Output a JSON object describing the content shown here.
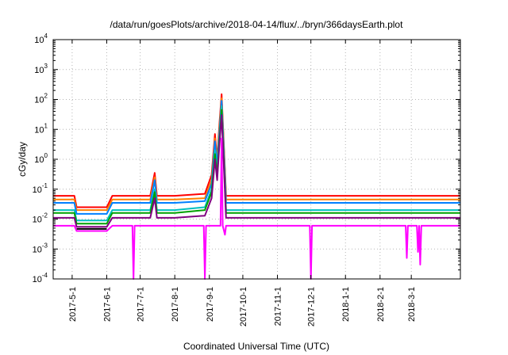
{
  "chart_data": {
    "type": "line",
    "title": "/data/run/goesPlots/archive/2018-04-14/flux/../bryn/366daysEarth.plot",
    "xlabel": "Coordinated Universal Time (UTC)",
    "ylabel": "cGy/day",
    "yscale": "log",
    "ylim": [
      0.0001,
      10000
    ],
    "xlim": [
      "2017-04-14",
      "2018-04-14"
    ],
    "grid": true,
    "x_ticks": [
      "2017-5-1",
      "2017-6-1",
      "2017-7-1",
      "2017-8-1",
      "2017-9-1",
      "2017-10-1",
      "2017-11-1",
      "2017-12-1",
      "2018-1-1",
      "2018-2-1",
      "2018-3-1"
    ],
    "y_ticks": [
      {
        "value": 0.0001,
        "label": "10",
        "exp": "-4"
      },
      {
        "value": 0.001,
        "label": "10",
        "exp": "-3"
      },
      {
        "value": 0.01,
        "label": "10",
        "exp": "-2"
      },
      {
        "value": 0.1,
        "label": "10",
        "exp": "-1"
      },
      {
        "value": 1,
        "label": "10",
        "exp": "0"
      },
      {
        "value": 10,
        "label": "10",
        "exp": "1"
      },
      {
        "value": 100,
        "label": "10",
        "exp": "2"
      },
      {
        "value": 1000,
        "label": "10",
        "exp": "3"
      },
      {
        "value": 10000,
        "label": "10",
        "exp": "4"
      }
    ],
    "series": [
      {
        "color": "#ff0000",
        "x": [
          "2017-04-14",
          "2017-05-03",
          "2017-05-05",
          "2017-06-01",
          "2017-06-06",
          "2017-07-10",
          "2017-07-14",
          "2017-07-16",
          "2017-08-01",
          "2017-08-28",
          "2017-09-03",
          "2017-09-06",
          "2017-09-08",
          "2017-09-10",
          "2017-09-12",
          "2017-09-16",
          "2017-10-01",
          "2017-11-01",
          "2017-12-01",
          "2018-01-01",
          "2018-02-01",
          "2018-03-01",
          "2018-04-14"
        ],
        "y": [
          0.06,
          0.06,
          0.025,
          0.025,
          0.06,
          0.06,
          0.35,
          0.06,
          0.06,
          0.07,
          0.3,
          7,
          1,
          15,
          150,
          0.06,
          0.06,
          0.06,
          0.06,
          0.06,
          0.06,
          0.06,
          0.06
        ]
      },
      {
        "color": "#ff8000",
        "x": [
          "2017-04-14",
          "2017-05-03",
          "2017-05-05",
          "2017-06-01",
          "2017-06-06",
          "2017-07-10",
          "2017-07-14",
          "2017-07-16",
          "2017-08-01",
          "2017-08-28",
          "2017-09-03",
          "2017-09-06",
          "2017-09-08",
          "2017-09-10",
          "2017-09-12",
          "2017-09-16",
          "2017-10-01",
          "2017-11-01",
          "2017-12-01",
          "2018-01-01",
          "2018-02-01",
          "2018-03-01",
          "2018-04-14"
        ],
        "y": [
          0.045,
          0.045,
          0.02,
          0.02,
          0.045,
          0.045,
          0.25,
          0.045,
          0.045,
          0.05,
          0.2,
          5,
          0.8,
          11,
          110,
          0.045,
          0.045,
          0.045,
          0.045,
          0.045,
          0.045,
          0.045,
          0.045
        ]
      },
      {
        "color": "#0080ff",
        "x": [
          "2017-04-14",
          "2017-05-03",
          "2017-05-05",
          "2017-06-01",
          "2017-06-06",
          "2017-07-10",
          "2017-07-14",
          "2017-07-16",
          "2017-08-01",
          "2017-08-28",
          "2017-09-03",
          "2017-09-06",
          "2017-09-08",
          "2017-09-10",
          "2017-09-12",
          "2017-09-16",
          "2017-10-01",
          "2017-11-01",
          "2017-12-01",
          "2018-01-01",
          "2018-02-01",
          "2018-03-01",
          "2018-04-14"
        ],
        "y": [
          0.035,
          0.035,
          0.015,
          0.015,
          0.035,
          0.035,
          0.2,
          0.035,
          0.035,
          0.04,
          0.15,
          4,
          0.6,
          8,
          90,
          0.035,
          0.035,
          0.035,
          0.035,
          0.035,
          0.035,
          0.035,
          0.035
        ]
      },
      {
        "color": "#00c0c0",
        "x": [
          "2017-04-14",
          "2017-05-03",
          "2017-05-05",
          "2017-06-01",
          "2017-06-06",
          "2017-07-10",
          "2017-07-14",
          "2017-07-16",
          "2017-08-01",
          "2017-08-28",
          "2017-09-03",
          "2017-09-06",
          "2017-09-08",
          "2017-09-10",
          "2017-09-12",
          "2017-09-16",
          "2017-10-01",
          "2017-11-01",
          "2017-12-01",
          "2018-01-01",
          "2018-02-01",
          "2018-03-01",
          "2018-04-14"
        ],
        "y": [
          0.02,
          0.02,
          0.009,
          0.009,
          0.02,
          0.02,
          0.1,
          0.02,
          0.02,
          0.025,
          0.1,
          2,
          0.4,
          5,
          60,
          0.02,
          0.02,
          0.02,
          0.02,
          0.02,
          0.02,
          0.02,
          0.02
        ]
      },
      {
        "color": "#00a000",
        "x": [
          "2017-04-14",
          "2017-05-03",
          "2017-05-05",
          "2017-06-01",
          "2017-06-06",
          "2017-07-10",
          "2017-07-14",
          "2017-07-16",
          "2017-08-01",
          "2017-08-28",
          "2017-09-03",
          "2017-09-06",
          "2017-09-08",
          "2017-09-10",
          "2017-09-12",
          "2017-09-16",
          "2017-10-01",
          "2017-11-01",
          "2017-12-01",
          "2018-01-01",
          "2018-02-01",
          "2018-03-01",
          "2018-04-14"
        ],
        "y": [
          0.016,
          0.016,
          0.007,
          0.007,
          0.016,
          0.016,
          0.08,
          0.016,
          0.016,
          0.02,
          0.08,
          1.5,
          0.3,
          4,
          45,
          0.016,
          0.016,
          0.016,
          0.016,
          0.016,
          0.016,
          0.016,
          0.016
        ]
      },
      {
        "color": "#800080",
        "x": [
          "2017-04-14",
          "2017-05-03",
          "2017-05-05",
          "2017-06-01",
          "2017-06-06",
          "2017-07-10",
          "2017-07-14",
          "2017-07-16",
          "2017-08-01",
          "2017-08-28",
          "2017-09-03",
          "2017-09-06",
          "2017-09-08",
          "2017-09-10",
          "2017-09-12",
          "2017-09-16",
          "2017-10-01",
          "2017-11-01",
          "2017-12-01",
          "2018-01-01",
          "2018-02-01",
          "2018-03-01",
          "2018-04-14"
        ],
        "y": [
          0.011,
          0.011,
          0.0055,
          0.0055,
          0.011,
          0.011,
          0.05,
          0.011,
          0.011,
          0.013,
          0.05,
          1,
          0.2,
          3,
          30,
          0.011,
          0.011,
          0.011,
          0.011,
          0.011,
          0.011,
          0.011,
          0.011
        ]
      },
      {
        "color": "#000000",
        "x": [
          "2017-05-05",
          "2017-06-01"
        ],
        "y": [
          0.0047,
          0.0047
        ]
      },
      {
        "color": "#ff00ff",
        "x": [
          "2017-04-14",
          "2017-05-03",
          "2017-05-05",
          "2017-06-01",
          "2017-06-06",
          "2017-06-24",
          "2017-06-25",
          "2017-06-26",
          "2017-08-01",
          "2017-08-27",
          "2017-08-28",
          "2017-08-29",
          "2017-09-11",
          "2017-09-12",
          "2017-09-13",
          "2017-09-15",
          "2017-09-16",
          "2017-09-17",
          "2017-10-01",
          "2017-11-01",
          "2017-11-30",
          "2017-12-01",
          "2017-12-02",
          "2018-01-01",
          "2018-02-01",
          "2018-02-24",
          "2018-02-25",
          "2018-02-26",
          "2018-03-06",
          "2018-03-07",
          "2018-03-08",
          "2018-03-09",
          "2018-03-10",
          "2018-04-14"
        ],
        "y": [
          0.006,
          0.006,
          0.004,
          0.004,
          0.006,
          0.006,
          0.0001,
          0.006,
          0.006,
          0.006,
          0.0001,
          0.006,
          0.006,
          5,
          0.006,
          0.003,
          0.006,
          0.006,
          0.006,
          0.006,
          0.006,
          0.0001,
          0.006,
          0.006,
          0.006,
          0.006,
          0.0005,
          0.006,
          0.006,
          0.0008,
          0.006,
          0.0003,
          0.006,
          0.006
        ]
      }
    ]
  }
}
